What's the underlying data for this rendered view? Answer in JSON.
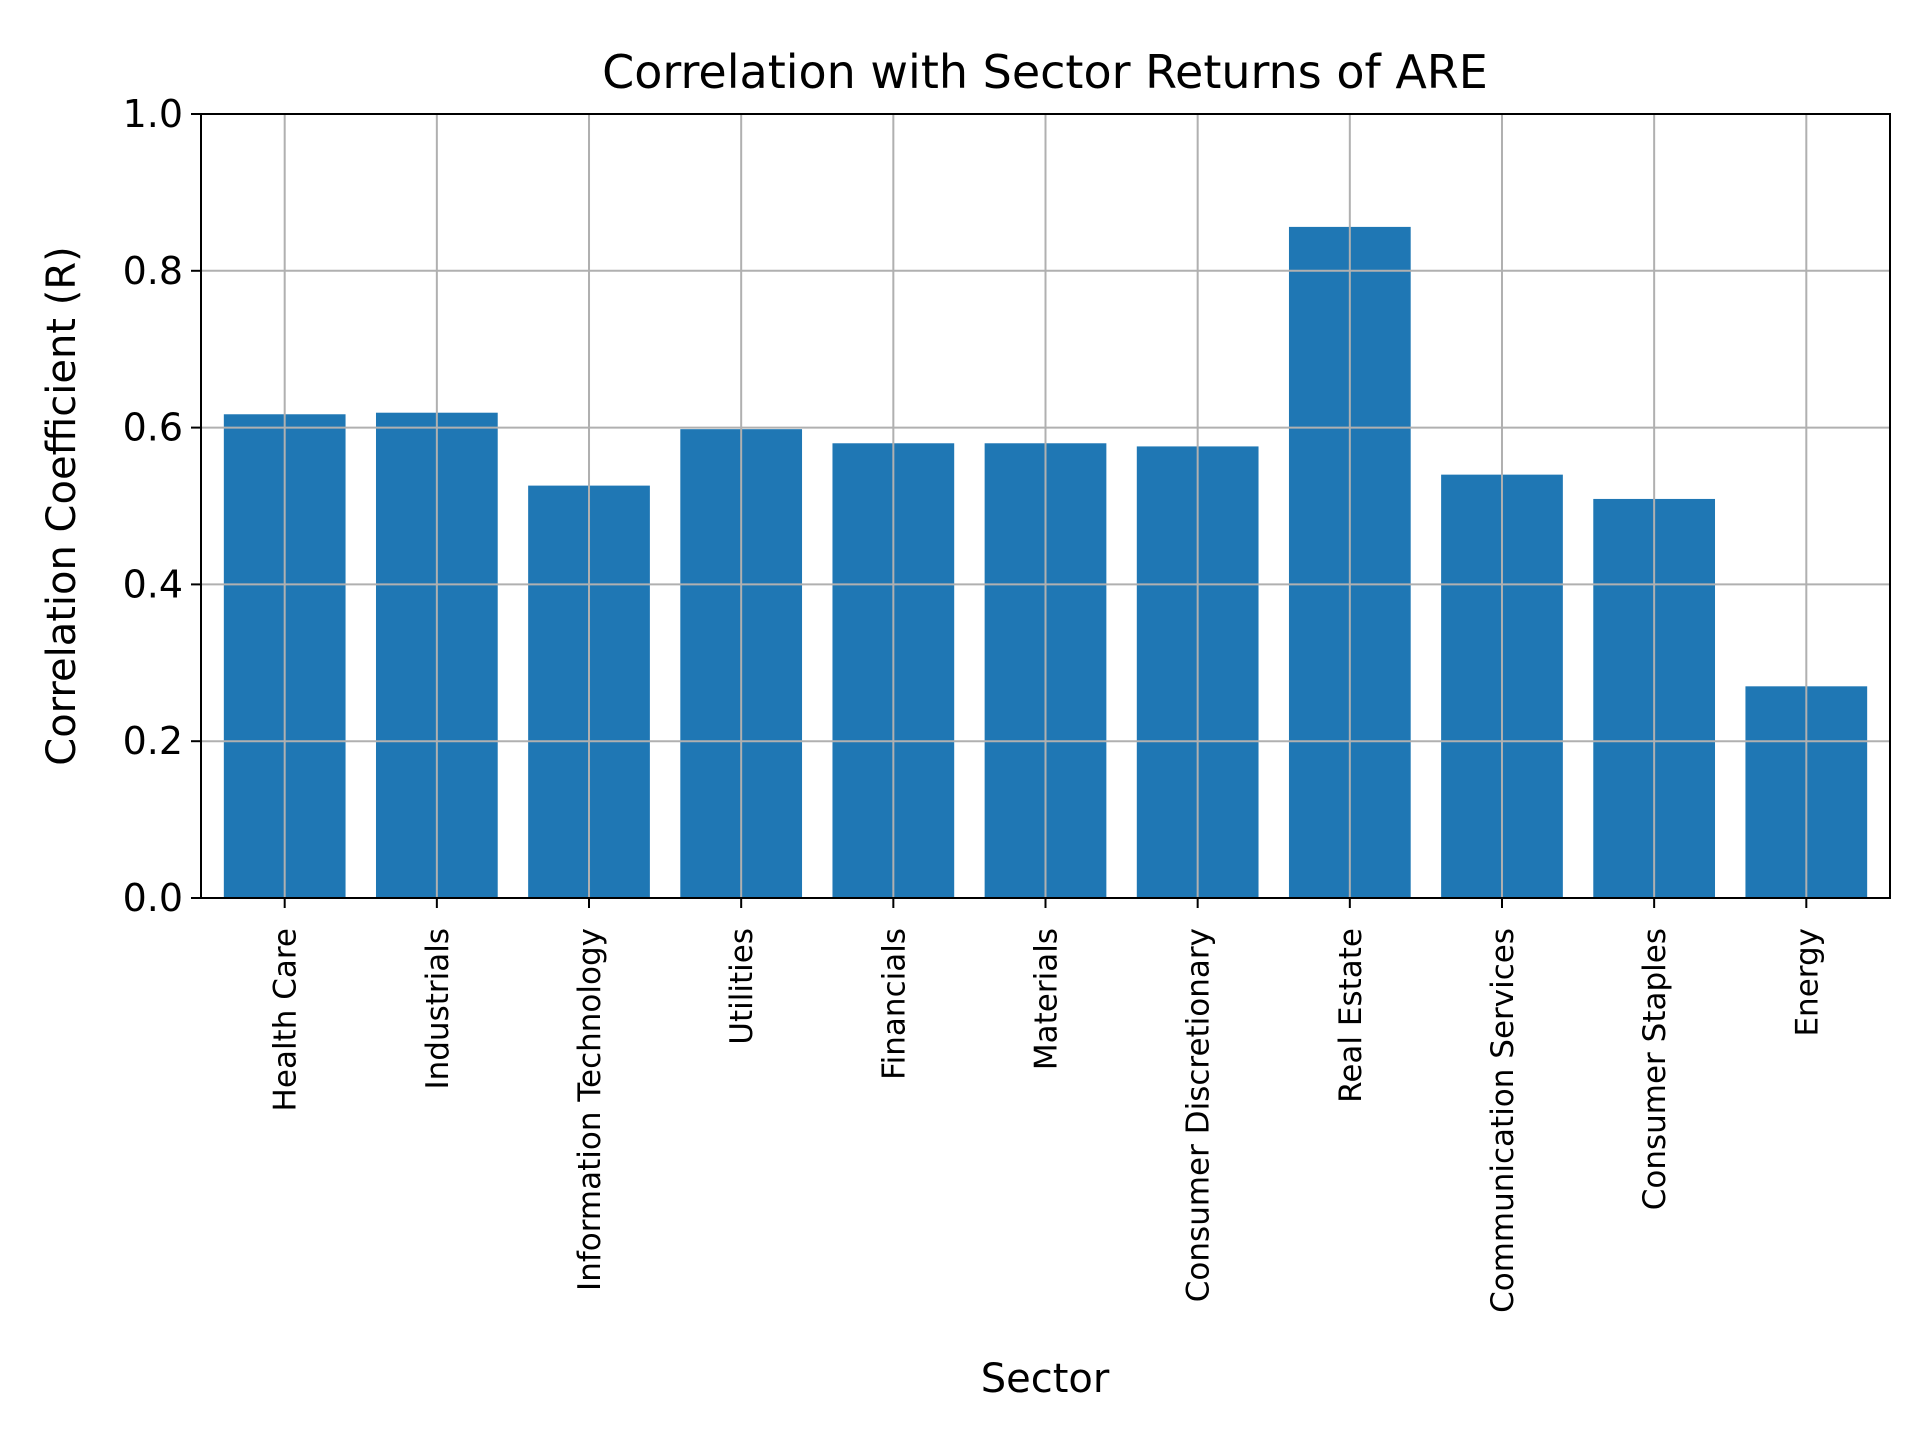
{
  "chart_data": {
    "type": "bar",
    "title": "Correlation with Sector Returns of ARE",
    "xlabel": "Sector",
    "ylabel": "Correlation Coefficient (R)",
    "categories": [
      "Health Care",
      "Industrials",
      "Information Technology",
      "Utilities",
      "Financials",
      "Materials",
      "Consumer Discretionary",
      "Real Estate",
      "Communication Services",
      "Consumer Staples",
      "Energy"
    ],
    "values": [
      0.617,
      0.619,
      0.526,
      0.598,
      0.58,
      0.58,
      0.576,
      0.856,
      0.54,
      0.509,
      0.27
    ],
    "ylim": [
      0.0,
      1.0
    ],
    "yticks": [
      "0.0",
      "0.2",
      "0.4",
      "0.6",
      "0.8",
      "1.0"
    ],
    "grid": true,
    "bar_color": "#1f77b4",
    "grid_color": "#b0b0b0"
  }
}
